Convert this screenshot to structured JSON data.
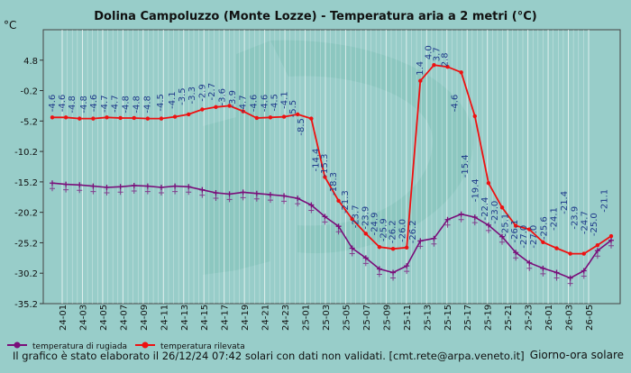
{
  "chart_data": {
    "type": "line",
    "title": "Dolina Campoluzzo (Monte Lozze) - Temperatura aria a 2 metri (°C)",
    "ylabel": "°C",
    "xlabel": "Giorno-ora solare",
    "footer": "Il grafico è stato elaborato il 26/12/24 07:42 solari con dati non validati. [cmt.rete@arpa.veneto.it]",
    "ylim": [
      -35.2,
      9.8
    ],
    "yticks": [
      4.8,
      -0.2,
      -5.2,
      -10.2,
      -15.2,
      -20.2,
      -25.2,
      -30.2,
      -35.2
    ],
    "ytick_labels": [
      "4.8",
      "-0.2",
      "-5.2",
      "-10.2",
      "-15.2",
      "-20.2",
      "-25.2",
      "-30.2",
      "-35.2"
    ],
    "x_range": [
      0,
      82
    ],
    "x_ticks": [
      "24-01",
      "24-03",
      "24-05",
      "24-07",
      "24-09",
      "24-11",
      "24-13",
      "24-15",
      "24-17",
      "24-19",
      "24-21",
      "24-23",
      "25-01",
      "25-03",
      "25-05",
      "25-07",
      "25-09",
      "25-11",
      "25-13",
      "25-15",
      "25-17",
      "25-19",
      "25-21",
      "25-23",
      "26-01",
      "26-03",
      "26-05"
    ],
    "series": [
      {
        "name": "temperatura rilevata",
        "color": "#ee1111",
        "x": [
          0,
          2,
          4,
          6,
          8,
          10,
          12,
          14,
          16,
          18,
          20,
          22,
          24,
          26,
          28,
          30,
          32,
          34,
          36,
          38,
          40,
          42,
          44,
          46,
          48,
          50,
          52,
          54,
          56,
          58,
          60,
          62,
          64,
          66,
          68,
          70,
          72,
          74,
          76,
          78,
          80,
          82
        ],
        "values": [
          -4.6,
          -4.6,
          -4.8,
          -4.8,
          -4.6,
          -4.7,
          -4.7,
          -4.8,
          -4.8,
          -4.5,
          -4.1,
          -3.3,
          -2.9,
          -2.7,
          -3.6,
          -4.7,
          -4.6,
          -4.5,
          -4.1,
          -4.8,
          -14.4,
          -18.3,
          -21.3,
          -23.7,
          -25.9,
          -26.2,
          -26.0,
          1.4,
          4.0,
          3.7,
          2.8,
          -4.4,
          -15.4,
          -19.4,
          -22.4,
          -23.0,
          -25.1,
          -26.1,
          -27.0,
          -27.0,
          -25.6,
          -24.1
        ]
      },
      {
        "name": "temperatura di rugiada",
        "color": "#7a0e7a",
        "x": [
          0,
          2,
          4,
          6,
          8,
          10,
          12,
          14,
          16,
          18,
          20,
          22,
          24,
          26,
          28,
          30,
          32,
          34,
          36,
          38,
          40,
          42,
          44,
          46,
          48,
          50,
          52,
          54,
          56,
          58,
          60,
          62,
          64,
          66,
          68,
          70,
          72,
          74,
          76,
          78,
          80,
          82
        ],
        "values": [
          -15.4,
          -15.6,
          -15.7,
          -15.9,
          -16.1,
          -16.0,
          -15.8,
          -15.9,
          -16.1,
          -15.9,
          -16.0,
          -16.5,
          -17.0,
          -17.2,
          -16.9,
          -17.1,
          -17.3,
          -17.5,
          -17.9,
          -19.0,
          -20.9,
          -22.5,
          -26.1,
          -27.7,
          -29.5,
          -30.1,
          -29.0,
          -24.9,
          -24.5,
          -21.4,
          -20.5,
          -21.0,
          -22.3,
          -24.2,
          -26.8,
          -28.5,
          -29.4,
          -30.1,
          -31.0,
          -29.8,
          -26.5,
          -24.8
        ]
      }
    ],
    "value_labels": [
      {
        "x": 0,
        "v": -4.6,
        "t": "-4.6"
      },
      {
        "x": 1.7,
        "v": -4.6,
        "t": "-4.6"
      },
      {
        "x": 3.5,
        "v": -4.8,
        "t": "-4.8"
      },
      {
        "x": 5.5,
        "v": -4.8,
        "t": "-4.8"
      },
      {
        "x": 7.3,
        "v": -4.6,
        "t": "-4.6"
      },
      {
        "x": 9.2,
        "v": -4.7,
        "t": "-4.7"
      },
      {
        "x": 11.0,
        "v": -4.7,
        "t": "-4.7"
      },
      {
        "x": 12.9,
        "v": -4.8,
        "t": "-4.8"
      },
      {
        "x": 14.8,
        "v": -4.8,
        "t": "-4.8"
      },
      {
        "x": 16.7,
        "v": -4.8,
        "t": "-4.8"
      },
      {
        "x": 19.0,
        "v": -4.5,
        "t": "-4.5"
      },
      {
        "x": 21.0,
        "v": -4.1,
        "t": "-4.1"
      },
      {
        "x": 22.8,
        "v": -3.5,
        "t": "-3.5"
      },
      {
        "x": 24.5,
        "v": -3.3,
        "t": "-3.3"
      },
      {
        "x": 26.3,
        "v": -2.9,
        "t": "-2.9"
      },
      {
        "x": 28.0,
        "v": -2.7,
        "t": "-2.7"
      },
      {
        "x": 29.8,
        "v": -3.6,
        "t": "-3.6"
      },
      {
        "x": 31.6,
        "v": -3.9,
        "t": "-3.9"
      },
      {
        "x": 33.4,
        "v": -4.7,
        "t": "-4.7"
      },
      {
        "x": 35.3,
        "v": -4.6,
        "t": "-4.6"
      },
      {
        "x": 37.2,
        "v": -4.6,
        "t": "-4.6"
      },
      {
        "x": 39.0,
        "v": -4.5,
        "t": "-4.5"
      },
      {
        "x": 40.7,
        "v": -4.1,
        "t": "-4.1"
      },
      {
        "x": 42.2,
        "v": -5.5,
        "t": "-5.5"
      },
      {
        "x": 43.6,
        "v": -8.5,
        "t": "-8.5"
      },
      {
        "x": 46.2,
        "v": -14.4,
        "t": "-14.4"
      },
      {
        "x": 47.7,
        "v": -15.3,
        "t": "-15.3"
      },
      {
        "x": 49.3,
        "v": -18.3,
        "t": "-18.3"
      },
      {
        "x": 51.4,
        "v": -21.3,
        "t": "-21.3"
      },
      {
        "x": 53.2,
        "v": -23.7,
        "t": "-23.7"
      },
      {
        "x": 54.9,
        "v": -23.9,
        "t": "-23.9"
      },
      {
        "x": 56.5,
        "v": -24.9,
        "t": "-24.9"
      },
      {
        "x": 58.1,
        "v": -25.9,
        "t": "-25.9"
      },
      {
        "x": 59.7,
        "v": -26.2,
        "t": "-26.2"
      },
      {
        "x": 61.4,
        "v": -26.0,
        "t": "-26.0"
      },
      {
        "x": 63.2,
        "v": -26.2,
        "t": "-26.2"
      },
      {
        "x": 64.5,
        "v": 1.4,
        "t": "1.4"
      },
      {
        "x": 66.0,
        "v": 4.0,
        "t": "4.0"
      },
      {
        "x": 67.4,
        "v": 3.7,
        "t": "3.7"
      },
      {
        "x": 68.8,
        "v": 2.8,
        "t": "2.8"
      },
      {
        "x": 70.6,
        "v": -4.6,
        "t": "-4.6"
      },
      {
        "x": 72.4,
        "v": -15.4,
        "t": "-15.4"
      },
      {
        "x": 74.2,
        "v": -19.4,
        "t": "-19.4"
      },
      {
        "x": 75.9,
        "v": -22.4,
        "t": "-22.4"
      },
      {
        "x": 77.6,
        "v": -23.0,
        "t": "-23.0"
      },
      {
        "x": 79.4,
        "v": -25.1,
        "t": "-25.1"
      },
      {
        "x": 81.1,
        "v": -26.1,
        "t": "-26.1"
      },
      {
        "x": 82.7,
        "v": -27.0,
        "t": "-27.0"
      },
      {
        "x": 84.4,
        "v": -27.0,
        "t": "-27.0"
      },
      {
        "x": 86.2,
        "v": -25.6,
        "t": "-25.6"
      },
      {
        "x": 88.0,
        "v": -24.1,
        "t": "-24.1"
      },
      {
        "x": 89.8,
        "v": -21.4,
        "t": "-21.4"
      },
      {
        "x": 91.6,
        "v": -23.9,
        "t": "-23.9"
      },
      {
        "x": 93.3,
        "v": -24.7,
        "t": "-24.7"
      },
      {
        "x": 95.0,
        "v": -25.0,
        "t": "-25.0"
      },
      {
        "x": 96.8,
        "v": -21.1,
        "t": "-21.1"
      }
    ],
    "grid": "vertical",
    "legend": "bottom-left"
  }
}
